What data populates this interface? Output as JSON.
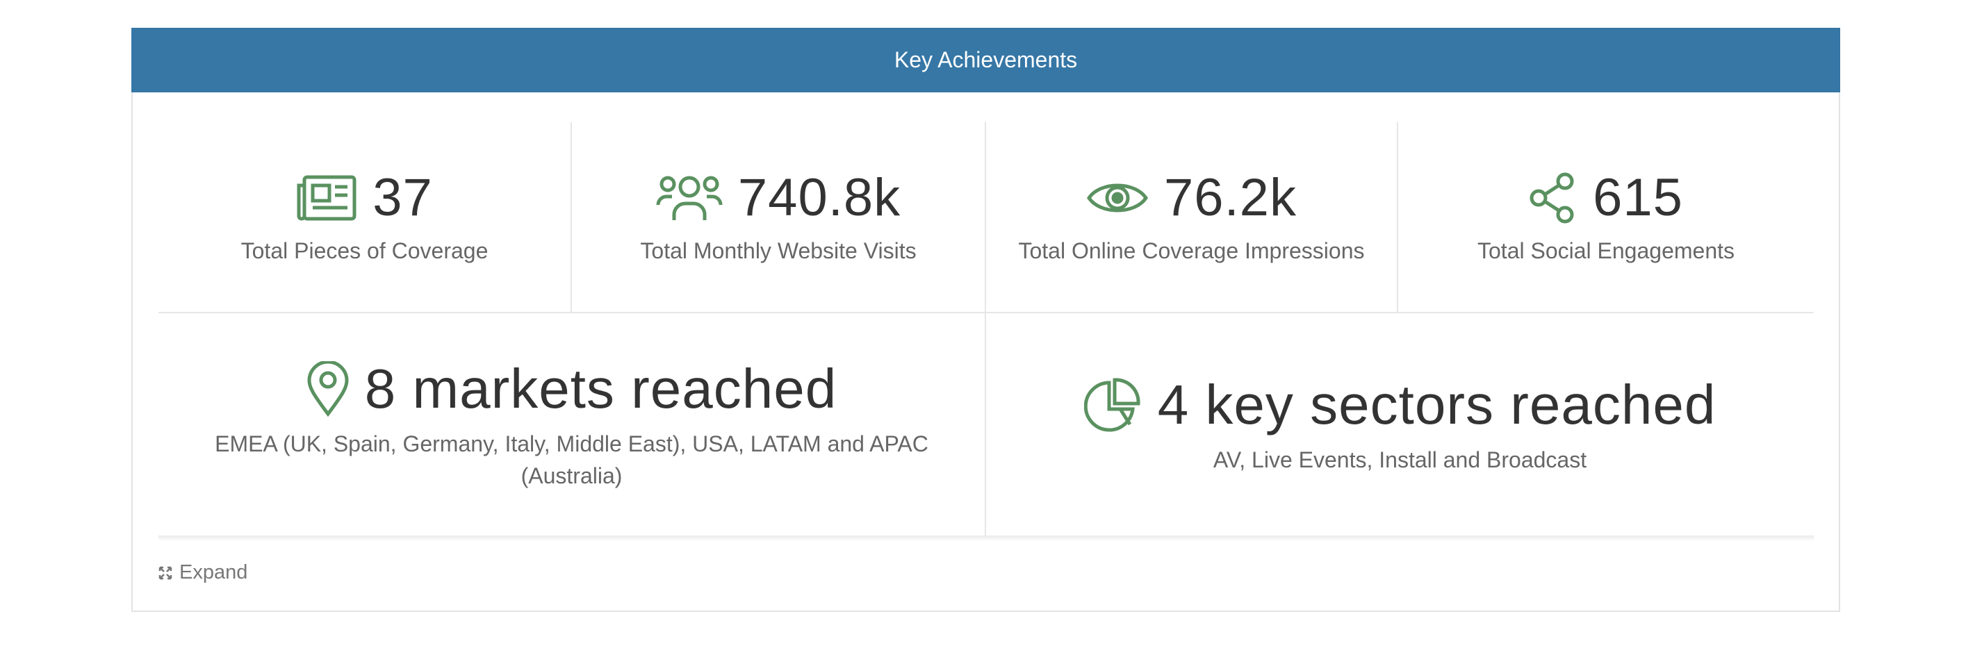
{
  "header": {
    "title": "Key Achievements"
  },
  "stats": [
    {
      "value": "37",
      "label": "Total Pieces of Coverage"
    },
    {
      "value": "740.8k",
      "label": "Total Monthly Website Visits"
    },
    {
      "value": "76.2k",
      "label": "Total Online Coverage Impressions"
    },
    {
      "value": "615",
      "label": "Total Social Engagements"
    }
  ],
  "highlights": [
    {
      "title": "8 markets reached",
      "description": "EMEA (UK, Spain, Germany, Italy, Middle East), USA, LATAM and APAC (Australia)"
    },
    {
      "title": "4 key sectors reached",
      "description": "AV, Live Events, Install and Broadcast"
    }
  ],
  "footer": {
    "action": "Expand"
  }
}
